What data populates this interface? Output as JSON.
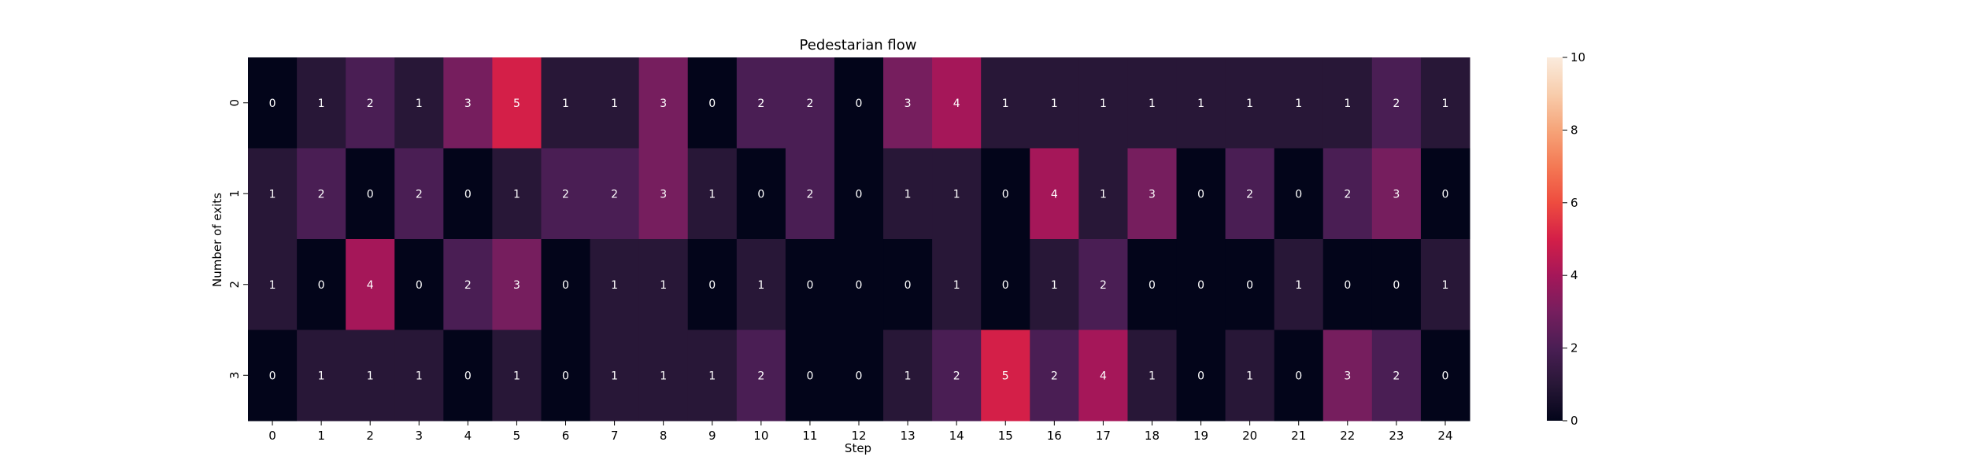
{
  "chart_data": {
    "type": "heatmap",
    "title": "Pedestarian flow",
    "xlabel": "Step",
    "ylabel": "Number of exits",
    "x_categories": [
      "0",
      "1",
      "2",
      "3",
      "4",
      "5",
      "6",
      "7",
      "8",
      "9",
      "10",
      "11",
      "12",
      "13",
      "14",
      "15",
      "16",
      "17",
      "18",
      "19",
      "20",
      "21",
      "22",
      "23",
      "24"
    ],
    "y_categories": [
      "0",
      "1",
      "2",
      "3"
    ],
    "values": [
      [
        0,
        1,
        2,
        1,
        3,
        5,
        1,
        1,
        3,
        0,
        2,
        2,
        0,
        3,
        4,
        1,
        1,
        1,
        1,
        1,
        1,
        1,
        1,
        2,
        1
      ],
      [
        1,
        2,
        0,
        2,
        0,
        1,
        2,
        2,
        3,
        1,
        0,
        2,
        0,
        1,
        1,
        0,
        4,
        1,
        3,
        0,
        2,
        0,
        2,
        3,
        0
      ],
      [
        1,
        0,
        4,
        0,
        2,
        3,
        0,
        1,
        1,
        0,
        1,
        0,
        0,
        0,
        1,
        0,
        1,
        2,
        0,
        0,
        0,
        1,
        0,
        0,
        1
      ],
      [
        0,
        1,
        1,
        1,
        0,
        1,
        0,
        1,
        1,
        1,
        2,
        0,
        0,
        1,
        2,
        5,
        2,
        4,
        1,
        0,
        1,
        0,
        3,
        2,
        0
      ]
    ],
    "colorbar": {
      "vmin": 0,
      "vmax": 10,
      "ticks": [
        "0",
        "2",
        "4",
        "6",
        "8",
        "10"
      ],
      "colormap": "rocket"
    },
    "annotations": true,
    "grid": false,
    "legend": "colorbar-right"
  }
}
